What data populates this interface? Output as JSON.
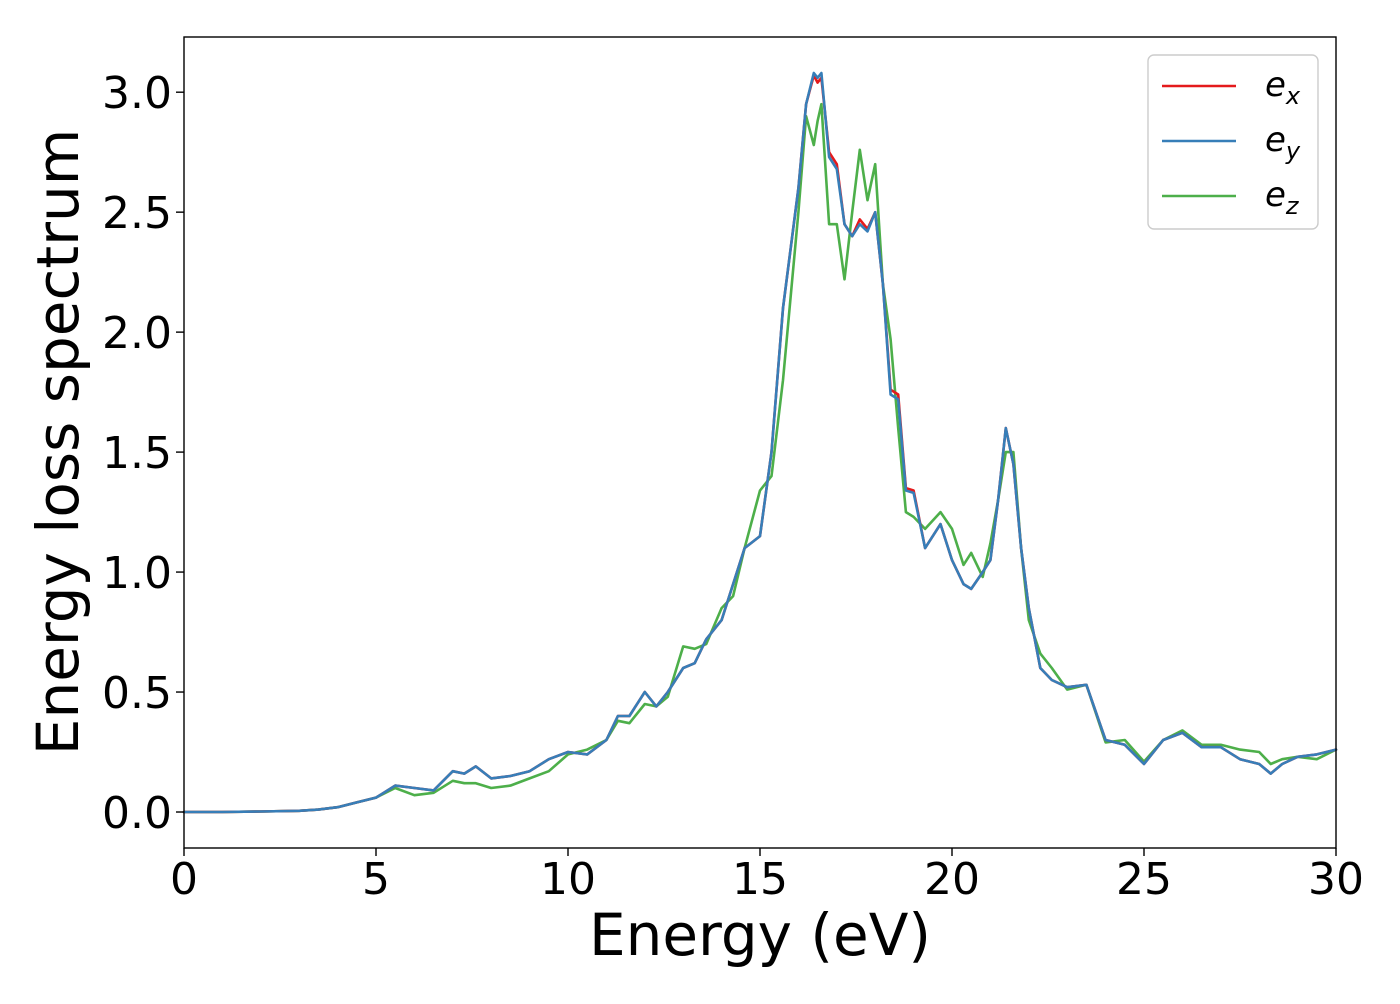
{
  "chart_data": {
    "type": "line",
    "title": "",
    "xlabel": "Energy (eV)",
    "ylabel": "Energy loss spectrum",
    "xlim": [
      0,
      30
    ],
    "ylim": [
      -0.15,
      3.23
    ],
    "xticks": [
      0,
      5,
      10,
      15,
      20,
      25,
      30
    ],
    "xtick_labels": [
      "0",
      "5",
      "10",
      "15",
      "20",
      "25",
      "30"
    ],
    "yticks": [
      0.0,
      0.5,
      1.0,
      1.5,
      2.0,
      2.5,
      3.0
    ],
    "ytick_labels": [
      "0.0",
      "0.5",
      "1.0",
      "1.5",
      "2.0",
      "2.5",
      "3.0"
    ],
    "grid": false,
    "legend_position": "top-right",
    "x": [
      0,
      1,
      2,
      3,
      3.5,
      4,
      4.5,
      5,
      5.5,
      6,
      6.5,
      7,
      7.3,
      7.6,
      8,
      8.5,
      9,
      9.5,
      10,
      10.5,
      11,
      11.3,
      11.6,
      12,
      12.3,
      12.6,
      13,
      13.3,
      13.6,
      14,
      14.3,
      14.6,
      15,
      15.3,
      15.6,
      16,
      16.2,
      16.4,
      16.5,
      16.6,
      16.8,
      17,
      17.2,
      17.4,
      17.6,
      17.8,
      18,
      18.2,
      18.4,
      18.6,
      18.8,
      19,
      19.3,
      19.7,
      20,
      20.3,
      20.5,
      20.8,
      21,
      21.2,
      21.4,
      21.6,
      21.8,
      22,
      22.3,
      22.6,
      23,
      23.5,
      24,
      24.5,
      25,
      25.5,
      26,
      26.5,
      27,
      27.5,
      28,
      28.3,
      28.6,
      29,
      29.5,
      30
    ],
    "series": [
      {
        "name": "e",
        "subscript": "x",
        "color": "#e41a1c",
        "values": [
          0,
          0,
          0.002,
          0.005,
          0.01,
          0.02,
          0.04,
          0.06,
          0.11,
          0.1,
          0.09,
          0.17,
          0.16,
          0.19,
          0.14,
          0.15,
          0.17,
          0.22,
          0.25,
          0.24,
          0.3,
          0.4,
          0.4,
          0.5,
          0.44,
          0.5,
          0.6,
          0.62,
          0.72,
          0.8,
          0.95,
          1.1,
          1.15,
          1.5,
          2.1,
          2.6,
          2.95,
          3.07,
          3.04,
          3.06,
          2.75,
          2.7,
          2.45,
          2.4,
          2.47,
          2.43,
          2.5,
          2.2,
          1.76,
          1.74,
          1.35,
          1.34,
          1.1,
          1.2,
          1.05,
          0.95,
          0.93,
          1.0,
          1.05,
          1.3,
          1.6,
          1.45,
          1.1,
          0.85,
          0.6,
          0.55,
          0.52,
          0.53,
          0.3,
          0.28,
          0.2,
          0.3,
          0.33,
          0.27,
          0.27,
          0.22,
          0.2,
          0.16,
          0.2,
          0.23,
          0.24,
          0.26
        ]
      },
      {
        "name": "e",
        "subscript": "y",
        "color": "#377eb8",
        "values": [
          0,
          0,
          0.002,
          0.005,
          0.01,
          0.02,
          0.04,
          0.06,
          0.11,
          0.1,
          0.09,
          0.17,
          0.16,
          0.19,
          0.14,
          0.15,
          0.17,
          0.22,
          0.25,
          0.24,
          0.3,
          0.4,
          0.4,
          0.5,
          0.44,
          0.5,
          0.6,
          0.62,
          0.72,
          0.8,
          0.95,
          1.1,
          1.15,
          1.5,
          2.1,
          2.6,
          2.95,
          3.08,
          3.06,
          3.08,
          2.73,
          2.68,
          2.45,
          2.4,
          2.45,
          2.42,
          2.5,
          2.2,
          1.74,
          1.72,
          1.34,
          1.33,
          1.1,
          1.2,
          1.05,
          0.95,
          0.93,
          1.0,
          1.05,
          1.3,
          1.6,
          1.45,
          1.1,
          0.85,
          0.6,
          0.55,
          0.52,
          0.53,
          0.3,
          0.28,
          0.2,
          0.3,
          0.33,
          0.27,
          0.27,
          0.22,
          0.2,
          0.16,
          0.2,
          0.23,
          0.24,
          0.26
        ]
      },
      {
        "name": "e",
        "subscript": "z",
        "color": "#4daf4a",
        "values": [
          0,
          0,
          0.002,
          0.005,
          0.01,
          0.02,
          0.04,
          0.06,
          0.1,
          0.07,
          0.08,
          0.13,
          0.12,
          0.12,
          0.1,
          0.11,
          0.14,
          0.17,
          0.24,
          0.26,
          0.3,
          0.38,
          0.37,
          0.45,
          0.44,
          0.48,
          0.69,
          0.68,
          0.7,
          0.85,
          0.9,
          1.1,
          1.34,
          1.4,
          1.8,
          2.5,
          2.9,
          2.78,
          2.88,
          2.95,
          2.45,
          2.45,
          2.22,
          2.5,
          2.76,
          2.55,
          2.7,
          2.2,
          1.97,
          1.6,
          1.25,
          1.23,
          1.18,
          1.25,
          1.18,
          1.03,
          1.08,
          0.98,
          1.12,
          1.3,
          1.5,
          1.5,
          1.1,
          0.8,
          0.66,
          0.6,
          0.51,
          0.53,
          0.29,
          0.3,
          0.21,
          0.3,
          0.34,
          0.28,
          0.28,
          0.26,
          0.25,
          0.2,
          0.22,
          0.23,
          0.22,
          0.26
        ]
      }
    ]
  }
}
